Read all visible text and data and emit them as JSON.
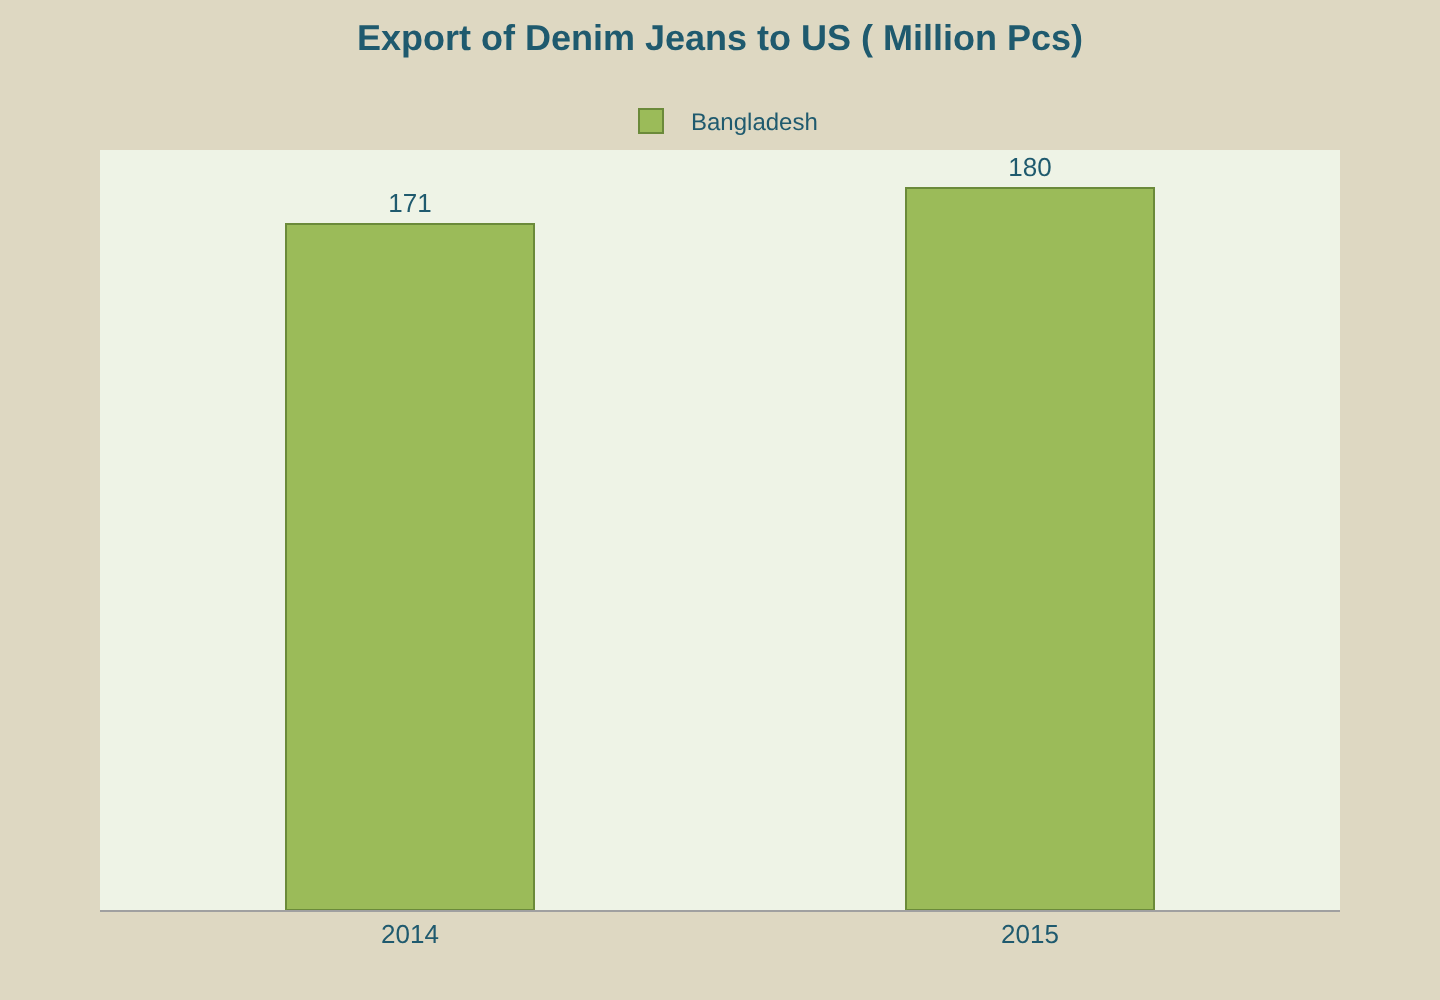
{
  "chart_data": {
    "type": "bar",
    "title": "Export of Denim Jeans to US ( Million Pcs)",
    "categories": [
      "2014",
      "2015"
    ],
    "series": [
      {
        "name": "Bangladesh",
        "color": "#9bbb59",
        "values": [
          171,
          180
        ]
      }
    ],
    "data_labels": true,
    "legend": "top",
    "grid": false,
    "tick_labels": "x"
  }
}
